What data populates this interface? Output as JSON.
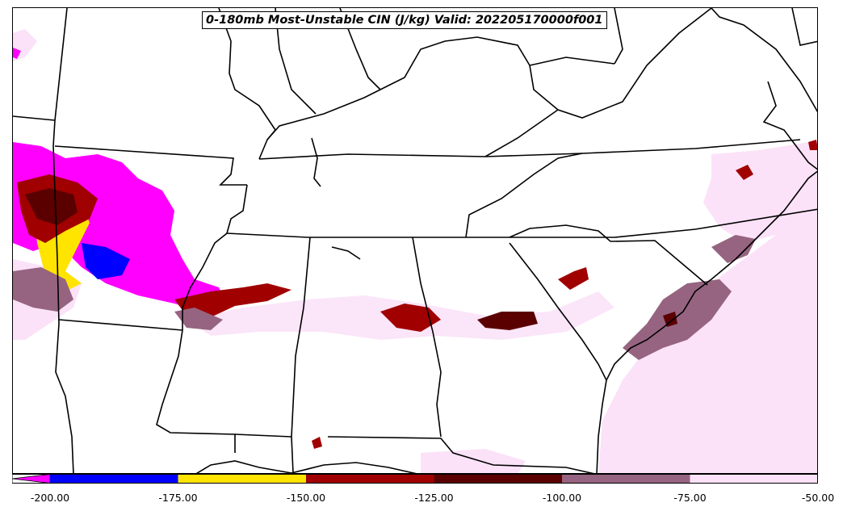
{
  "title": "0-180mb Most-Unstable CIN (J/kg) Valid: 202205170000f001",
  "colorbar": {
    "ticks": [
      "-200.00",
      "-175.00",
      "-150.00",
      "-125.00",
      "-100.00",
      "-75.00",
      "-50.00"
    ],
    "colors": [
      "#ff00ff",
      "#0000ff",
      "#ffe400",
      "#a00000",
      "#5a0000",
      "#966480",
      "#fbe2f8"
    ],
    "extend": "min"
  },
  "fill_colors": {
    "magenta": "#ff00ff",
    "blue": "#0000ff",
    "yellow": "#ffe400",
    "red": "#a00000",
    "dark_red": "#5a0000",
    "mauve": "#966480",
    "pink": "#fbe2f8"
  }
}
